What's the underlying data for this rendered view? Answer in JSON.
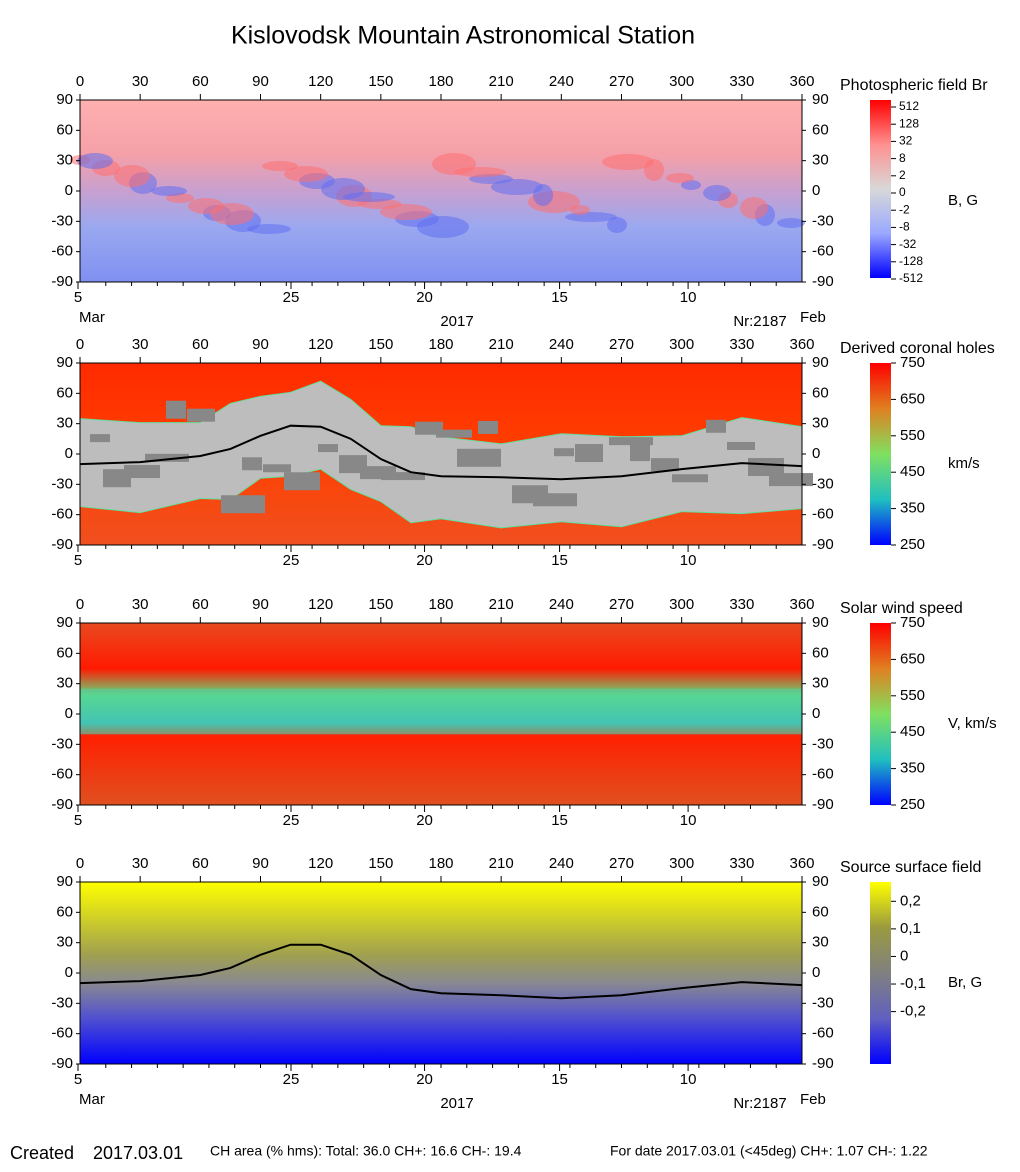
{
  "title": "Kislovodsk Mountain Astronomical Station",
  "date_axis": {
    "dates": [
      "5",
      "25",
      "20",
      "15",
      "10"
    ],
    "month_start": "Mar",
    "year": "2017",
    "rotation": "Nr:2187",
    "month_end": "Feb"
  },
  "chart_data": [
    {
      "type": "map",
      "title": "Photospheric field Br",
      "unit": "B, G",
      "background": "field",
      "show_date_details": true,
      "xlim": [
        0,
        360
      ],
      "xticks": [
        0,
        30,
        60,
        90,
        120,
        150,
        180,
        210,
        240,
        270,
        300,
        330,
        360
      ],
      "ylim": [
        -90,
        90
      ],
      "yticks": [
        -90,
        -60,
        -30,
        0,
        30,
        60,
        90
      ],
      "cbar_scale": "index",
      "cbar_colors": [
        "#ff0000",
        "#ff9090",
        "#d8d8d8",
        "#9aa8ff",
        "#0000ff"
      ],
      "cbar_ticks": [
        512,
        128,
        32,
        8,
        2,
        0,
        -2,
        -8,
        -32,
        -128,
        -512
      ]
    },
    {
      "type": "map",
      "title": "Derived coronal holes",
      "unit": "km/s",
      "background": "holes",
      "show_date_details": false,
      "xlim": [
        0,
        360
      ],
      "xticks": [
        0,
        30,
        60,
        90,
        120,
        150,
        180,
        210,
        240,
        270,
        300,
        330,
        360
      ],
      "ylim": [
        -90,
        90
      ],
      "yticks": [
        -90,
        -60,
        -30,
        0,
        30,
        60,
        90
      ],
      "cbar_scale": "linear",
      "clim": [
        250,
        750
      ],
      "cbar_colors": [
        "#ff0000",
        "#e08020",
        "#80e060",
        "#20c0c0",
        "#0000ff"
      ],
      "cbar_ticks": [
        750,
        650,
        550,
        450,
        350,
        250
      ],
      "series": [
        {
          "color": "#000000",
          "x": [
            0,
            30,
            60,
            75,
            90,
            105,
            120,
            135,
            150,
            165,
            180,
            210,
            240,
            270,
            300,
            330,
            360
          ],
          "values": [
            -10,
            -8,
            -2,
            5,
            18,
            28,
            27,
            15,
            -5,
            -18,
            -22,
            -23,
            -25,
            -22,
            -15,
            -9,
            -12
          ]
        }
      ]
    },
    {
      "type": "map",
      "title": "Solar wind speed",
      "unit": "V, km/s",
      "background": "wind",
      "show_date_details": false,
      "xlim": [
        0,
        360
      ],
      "xticks": [
        0,
        30,
        60,
        90,
        120,
        150,
        180,
        210,
        240,
        270,
        300,
        330,
        360
      ],
      "ylim": [
        -90,
        90
      ],
      "yticks": [
        -90,
        -60,
        -30,
        0,
        30,
        60,
        90
      ],
      "cbar_scale": "linear",
      "clim": [
        250,
        750
      ],
      "cbar_colors": [
        "#ff0000",
        "#e08020",
        "#80e060",
        "#20c0c0",
        "#0000ff"
      ],
      "cbar_ticks": [
        750,
        650,
        550,
        450,
        350,
        250
      ]
    },
    {
      "type": "map",
      "title": "Source surface field",
      "unit": "Br, G",
      "background": "source",
      "show_date_details": true,
      "xlim": [
        0,
        360
      ],
      "xticks": [
        0,
        30,
        60,
        90,
        120,
        150,
        180,
        210,
        240,
        270,
        300,
        330,
        360
      ],
      "ylim": [
        -90,
        90
      ],
      "yticks": [
        -90,
        -60,
        -30,
        0,
        30,
        60,
        90
      ],
      "cbar_scale": "linear",
      "clim": [
        -0.39,
        0.27
      ],
      "cbar_colors": [
        "#ffff00",
        "#9a9a40",
        "#808080",
        "#6060c0",
        "#0000ff"
      ],
      "cbar_ticks": [
        {
          "value": 0.2,
          "label": "0,2"
        },
        {
          "value": 0.1,
          "label": "0,1"
        },
        0,
        {
          "value": -0.1,
          "label": "-0,1"
        },
        {
          "value": -0.2,
          "label": "-0,2"
        }
      ],
      "series": [
        {
          "color": "#000000",
          "x": [
            0,
            30,
            60,
            75,
            90,
            105,
            120,
            135,
            150,
            165,
            180,
            210,
            240,
            270,
            300,
            330,
            360
          ],
          "values": [
            -10,
            -8,
            -2,
            5,
            18,
            28,
            28,
            18,
            -2,
            -16,
            -20,
            -22,
            -25,
            -22,
            -15,
            -9,
            -12
          ]
        }
      ]
    }
  ],
  "footer": {
    "created_label": "Created",
    "created_date": "2017.03.01",
    "ch_area": "CH area (% hms): Total: 36.0 CH+: 16.6   CH-: 19.4",
    "for_date": "For date 2017.03.01 (<45deg) CH+: 1.07   CH-: 1.22"
  }
}
